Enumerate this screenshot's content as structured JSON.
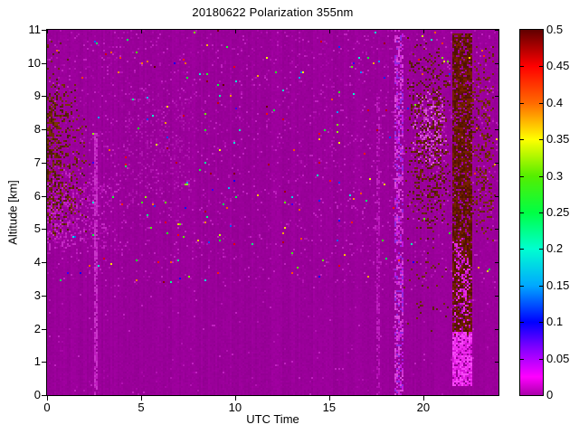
{
  "figure": {
    "background": "#ffffff",
    "axis_color": "#000000"
  },
  "chart_data": {
    "type": "heatmap",
    "title": "20180622 Polarization 355nm",
    "xlabel": "UTC Time",
    "ylabel": "Altitude [km]",
    "xlim": [
      0,
      24
    ],
    "ylim": [
      0,
      11
    ],
    "clim": [
      0,
      0.5
    ],
    "x_ticks": [
      0,
      5,
      10,
      15,
      20
    ],
    "x_tick_labels": [
      "0",
      "5",
      "10",
      "15",
      "20"
    ],
    "y_ticks": [
      0,
      1,
      2,
      3,
      4,
      5,
      6,
      7,
      8,
      9,
      10,
      11
    ],
    "y_tick_labels": [
      "0",
      "1",
      "2",
      "3",
      "4",
      "5",
      "6",
      "7",
      "8",
      "9",
      "10",
      "11"
    ],
    "colorbar_ticks": [
      0,
      0.05,
      0.1,
      0.15,
      0.2,
      0.25,
      0.3,
      0.35,
      0.4,
      0.45,
      0.5
    ],
    "colorbar_tick_labels": [
      "0",
      "0.05",
      "0.1",
      "0.15",
      "0.2",
      "0.25",
      "0.3",
      "0.35",
      "0.4",
      "0.45",
      "0.5"
    ],
    "legend_position": "right-colorbar",
    "grid": false,
    "colormap": [
      [
        0.0,
        "#aa00aa"
      ],
      [
        0.025,
        "#ff00ff"
      ],
      [
        0.065,
        "#8000ff"
      ],
      [
        0.1,
        "#0000ff"
      ],
      [
        0.15,
        "#00a8ff"
      ],
      [
        0.2,
        "#00ffd0"
      ],
      [
        0.25,
        "#00ff44"
      ],
      [
        0.3,
        "#55ee00"
      ],
      [
        0.35,
        "#ffff00"
      ],
      [
        0.4,
        "#ff6a00"
      ],
      [
        0.45,
        "#ff0000"
      ],
      [
        0.5,
        "#600000"
      ]
    ],
    "description": "Lidar depolarization heatmap: mostly uniform low values ~0 (magenta) with dark-red high-depolarization noise plumes near UTC 0-2 at 5-9.5 km, scattered speckle noise above ~3.5 km, bright vertical artifact lines at UTC 2.6 and 17.6, a noisy column at UTC 18.7, dark-red noise fields UTC 19-24 at 5-11 km, and two strong dark-red vertical stripes at UTC 21.5-22.6 from ~2-11 km with bright magenta below 2 km.",
    "noise": {
      "seed": 1337,
      "cell": 2,
      "background": "#9a009a",
      "column_jitter": 0.05,
      "pixel_jitter": 0.06,
      "base_speckle": {
        "colors": [
          "#b112b1",
          "#bf22bf",
          "#a806a8"
        ],
        "density_high": 0.055,
        "density_low": 0.012,
        "alt_threshold": 3.4
      },
      "rainbow": {
        "density": 0.004,
        "alt_threshold": 3.4,
        "value_range": [
          0.08,
          0.5
        ],
        "bands": [
          2.5,
          4.85,
          5.3,
          6.35,
          7.0,
          7.35,
          8.45,
          9.1,
          10.0,
          10.45,
          11.6,
          12.6,
          13.05,
          13.45,
          14.5,
          15.5,
          16.3,
          18.0
        ],
        "band_halfwidth": 0.09,
        "band_boost": 6
      },
      "regions": [
        {
          "name": "mid-faint-haze",
          "t": [
            3.8,
            8.4
          ],
          "a": [
            5.4,
            9.4
          ],
          "density": 0.15,
          "colors": [
            "#a50ba5",
            "#ae14ae"
          ],
          "fade": true,
          "bias_t": 0
        },
        {
          "name": "left-bright-cloud",
          "t": [
            0,
            4.6
          ],
          "a": [
            4.2,
            6.9
          ],
          "density": 0.5,
          "colors": [
            "#b914b9",
            "#c42ac4",
            "#ad08ad"
          ],
          "fade": true,
          "bias_t": -1
        },
        {
          "name": "bright-line-utc2.6",
          "t": [
            2.5,
            2.74
          ],
          "a": [
            0,
            7.9
          ],
          "density": 0.75,
          "colors": [
            "#bf1cbf",
            "#c934c9"
          ],
          "fade": false,
          "bias_t": 0
        },
        {
          "name": "bright-line-utc17.6",
          "t": [
            17.5,
            17.74
          ],
          "a": [
            0,
            9.0
          ],
          "density": 0.5,
          "colors": [
            "#b30eb3",
            "#bd1fbd"
          ],
          "fade": false,
          "bias_t": 0
        },
        {
          "name": "left-dark-plume",
          "t": [
            0,
            2.3
          ],
          "a": [
            4.6,
            9.7
          ],
          "density": 0.58,
          "colors": [
            "#5e1f00",
            "#6f2a05",
            "#4f1c08",
            "#7a3500"
          ],
          "fade": true,
          "bias_t": -1
        },
        {
          "name": "left-top-sparse",
          "t": [
            0,
            1.3
          ],
          "a": [
            9.6,
            10.9
          ],
          "density": 0.14,
          "colors": [
            "#5e1f00",
            "#6f2a05"
          ],
          "fade": true,
          "bias_t": -1
        },
        {
          "name": "speckle-column-utc18.7",
          "t": [
            18.5,
            18.95
          ],
          "a": [
            0,
            11
          ],
          "density": 0.55,
          "colors": [
            "#d02ed0",
            "#c516e0",
            "#8f2ae0",
            "#db49db"
          ],
          "fade": false,
          "bias_t": 0
        },
        {
          "name": "right-pink-cloud",
          "t": [
            19.4,
            21.3
          ],
          "a": [
            6.8,
            9.2
          ],
          "density": 0.4,
          "colors": [
            "#d044d0",
            "#da58da",
            "#c22ec2"
          ],
          "fade": true,
          "bias_t": 0
        },
        {
          "name": "right-dark-field",
          "t": [
            19.0,
            21.55
          ],
          "a": [
            4.6,
            10.9
          ],
          "density": 0.3,
          "colors": [
            "#5e1f00",
            "#702804",
            "#531a02"
          ],
          "fade": true,
          "bias_t": 0
        },
        {
          "name": "right-low-sparse",
          "t": [
            18.9,
            21.5
          ],
          "a": [
            1.8,
            4.6
          ],
          "density": 0.07,
          "colors": [
            "#5e1f00",
            "#702804"
          ],
          "fade": true,
          "bias_t": 0
        },
        {
          "name": "far-right-dark",
          "t": [
            22.55,
            23.85
          ],
          "a": [
            4.5,
            10.6
          ],
          "density": 0.28,
          "colors": [
            "#5e1f00",
            "#6f2a05",
            "#803000"
          ],
          "fade": true,
          "bias_t": 0
        },
        {
          "name": "stripe-utc21.8-dark",
          "t": [
            21.55,
            22.0
          ],
          "a": [
            1.8,
            10.9
          ],
          "density": 0.82,
          "colors": [
            "#641700",
            "#762100",
            "#521300"
          ],
          "fade": false,
          "bias_t": 0
        },
        {
          "name": "stripe-utc21.8-bright",
          "t": [
            21.55,
            22.0
          ],
          "a": [
            0.25,
            1.9
          ],
          "density": 0.85,
          "colors": [
            "#ee2bee",
            "#f646f6",
            "#d914d9"
          ],
          "fade": false,
          "bias_t": 0
        },
        {
          "name": "stripe-utc22.3-dark",
          "t": [
            22.06,
            22.58
          ],
          "a": [
            1.8,
            10.9
          ],
          "density": 0.82,
          "colors": [
            "#641700",
            "#762100",
            "#521300"
          ],
          "fade": false,
          "bias_t": 0
        },
        {
          "name": "stripe-utc22.3-bright",
          "t": [
            22.06,
            22.58
          ],
          "a": [
            0.25,
            1.9
          ],
          "density": 0.85,
          "colors": [
            "#ee2bee",
            "#f646f6",
            "#d914d9"
          ],
          "fade": false,
          "bias_t": 0
        },
        {
          "name": "stripes-lower-mix",
          "t": [
            21.55,
            22.58
          ],
          "a": [
            1.8,
            4.8
          ],
          "density": 0.35,
          "colors": [
            "#e52ae5",
            "#d016d0"
          ],
          "fade": true,
          "bias_t": 0
        }
      ]
    }
  }
}
